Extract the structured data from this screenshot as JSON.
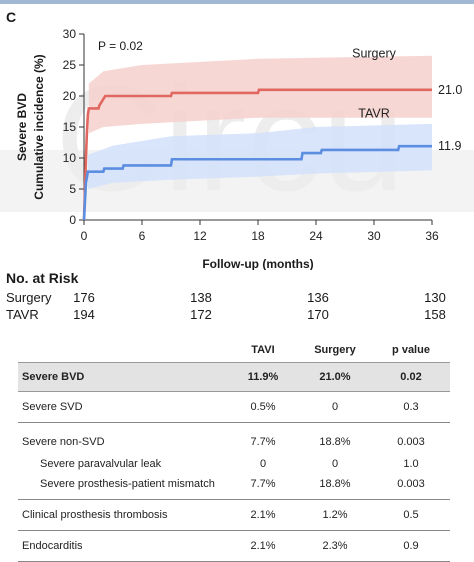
{
  "panel_label": "C",
  "watermark": "Circu",
  "chart_data": {
    "type": "line",
    "title": "",
    "ylabel_line1": "Severe BVD",
    "ylabel_line2": "Cumulative incidence (%)",
    "xlabel": "Follow-up (months)",
    "xlim": [
      0,
      36
    ],
    "ylim": [
      0,
      30
    ],
    "xticks": [
      0,
      6,
      12,
      18,
      24,
      30,
      36
    ],
    "yticks": [
      0,
      5,
      10,
      15,
      20,
      25,
      30
    ],
    "annotation": "P = 0.02",
    "grid": false,
    "series": [
      {
        "name": "Surgery",
        "color": "#e06860",
        "band_color": "#f6d0cd",
        "end_label": "21.0",
        "points": [
          [
            0,
            0
          ],
          [
            0.1,
            5
          ],
          [
            0.2,
            10
          ],
          [
            0.3,
            14
          ],
          [
            0.4,
            17
          ],
          [
            0.5,
            18
          ],
          [
            1.5,
            18
          ],
          [
            1.6,
            18.5
          ],
          [
            1.8,
            19
          ],
          [
            2,
            19.5
          ],
          [
            2.2,
            20
          ],
          [
            9,
            20
          ],
          [
            9.1,
            20.5
          ],
          [
            18,
            20.5
          ],
          [
            18.1,
            21
          ],
          [
            36,
            21
          ]
        ],
        "band_upper": [
          [
            0.5,
            22
          ],
          [
            2,
            24
          ],
          [
            6,
            25
          ],
          [
            12,
            25.5
          ],
          [
            18,
            26
          ],
          [
            36,
            26.5
          ]
        ],
        "band_lower": [
          [
            0.5,
            14
          ],
          [
            2,
            15
          ],
          [
            6,
            15.5
          ],
          [
            12,
            16
          ],
          [
            18,
            16.5
          ],
          [
            36,
            16.5
          ]
        ]
      },
      {
        "name": "TAVR",
        "color": "#5b8de0",
        "band_color": "#d2e1fa",
        "end_label": "11.9",
        "points": [
          [
            0,
            0
          ],
          [
            0.1,
            3
          ],
          [
            0.2,
            6
          ],
          [
            0.4,
            7.8
          ],
          [
            2,
            7.8
          ],
          [
            2.1,
            8.3
          ],
          [
            4,
            8.3
          ],
          [
            4.1,
            8.8
          ],
          [
            9,
            8.8
          ],
          [
            9.1,
            9.8
          ],
          [
            22.5,
            9.8
          ],
          [
            22.6,
            10.8
          ],
          [
            24.5,
            10.8
          ],
          [
            24.6,
            11.3
          ],
          [
            32.5,
            11.3
          ],
          [
            32.6,
            11.9
          ],
          [
            36,
            11.9
          ]
        ],
        "band_upper": [
          [
            0.4,
            10.5
          ],
          [
            3,
            12
          ],
          [
            9,
            13.5
          ],
          [
            18,
            14
          ],
          [
            24,
            15
          ],
          [
            36,
            15.5
          ]
        ],
        "band_lower": [
          [
            0.4,
            5
          ],
          [
            3,
            6
          ],
          [
            9,
            6.5
          ],
          [
            18,
            7
          ],
          [
            24,
            7.5
          ],
          [
            36,
            8
          ]
        ]
      }
    ]
  },
  "risk_table": {
    "title": "No. at Risk",
    "times": [
      0,
      12,
      24,
      36
    ],
    "rows": [
      {
        "label": "Surgery",
        "values": [
          "176",
          "138",
          "136",
          "130"
        ]
      },
      {
        "label": "TAVR",
        "values": [
          "194",
          "172",
          "170",
          "158"
        ]
      }
    ]
  },
  "results_table": {
    "headers": [
      "TAVI",
      "Surgery",
      "p value"
    ],
    "rows": [
      {
        "label": "Severe BVD",
        "values": [
          "11.9%",
          "21.0%",
          "0.02"
        ]
      },
      {
        "label": "Severe SVD",
        "values": [
          "0.5%",
          "0",
          "0.3"
        ]
      },
      {
        "label": "Severe non-SVD",
        "values": [
          "7.7%",
          "18.8%",
          "0.003"
        ]
      },
      {
        "label": "Severe paravalvular leak",
        "values": [
          "0",
          "0",
          "1.0"
        ]
      },
      {
        "label": "Severe prosthesis-patient mismatch",
        "values": [
          "7.7%",
          "18.8%",
          "0.003"
        ]
      },
      {
        "label": "Clinical prosthesis thrombosis",
        "values": [
          "2.1%",
          "1.2%",
          "0.5"
        ]
      },
      {
        "label": "Endocarditis",
        "values": [
          "2.1%",
          "2.3%",
          "0.9"
        ]
      }
    ]
  }
}
